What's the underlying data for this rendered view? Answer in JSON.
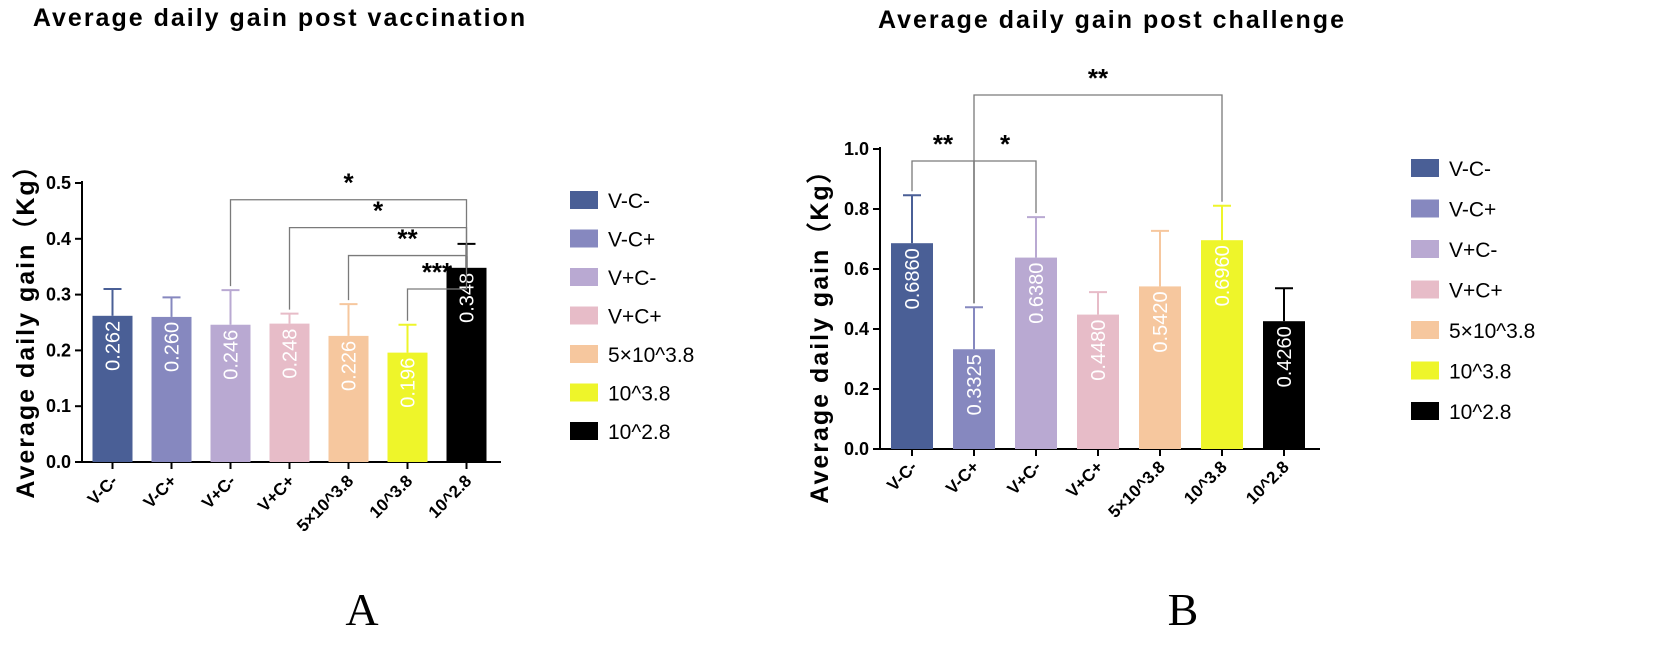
{
  "colors": {
    "V-C-": "#4a5f96",
    "V-C+": "#8688bf",
    "V+C-": "#b9a9d2",
    "V+C+": "#e7bcc8",
    "5×10^3.8": "#f6c79e",
    "10^3.8": "#eef52a",
    "10^2.8": "#000000"
  },
  "chart_data": [
    {
      "panel": "A",
      "type": "bar",
      "title": "Average daily gain post vaccination",
      "ylabel": "Average daily gain（Kg）",
      "xlabel": "",
      "ylim": [
        0,
        0.5
      ],
      "yticks": [
        "0.0",
        "0.1",
        "0.2",
        "0.3",
        "0.4",
        "0.5"
      ],
      "categories": [
        "V-C-",
        "V-C+",
        "V+C-",
        "V+C+",
        "5×10^3.8",
        "10^3.8",
        "10^2.8"
      ],
      "values": [
        0.262,
        0.26,
        0.246,
        0.248,
        0.226,
        0.196,
        0.348
      ],
      "value_labels": [
        "0.262",
        "0.260",
        "0.246",
        "0.248",
        "0.226",
        "0.196",
        "0.348"
      ],
      "errors": [
        0.048,
        0.035,
        0.062,
        0.018,
        0.057,
        0.05,
        0.043
      ],
      "legend": [
        "V-C-",
        "V-C+",
        "V+C-",
        "V+C+",
        "5×10^3.8",
        "10^3.8",
        "10^2.8"
      ],
      "legend_position": "right",
      "significance": [
        {
          "from": 2,
          "to": 6,
          "y": 0.47,
          "label": "*"
        },
        {
          "from": 3,
          "to": 6,
          "y": 0.42,
          "label": "*"
        },
        {
          "from": 4,
          "to": 6,
          "y": 0.37,
          "label": "**"
        },
        {
          "from": 5,
          "to": 6,
          "y": 0.31,
          "label": "***"
        }
      ]
    },
    {
      "panel": "B",
      "type": "bar",
      "title": "Average daily gain post challenge",
      "ylabel": "Average daily gain（Kg）",
      "xlabel": "",
      "ylim": [
        0,
        1.0
      ],
      "yticks": [
        "0.0",
        "0.2",
        "0.4",
        "0.6",
        "0.8",
        "1.0"
      ],
      "categories": [
        "V-C-",
        "V-C+",
        "V+C-",
        "V+C+",
        "5×10^3.8",
        "10^3.8",
        "10^2.8"
      ],
      "values": [
        0.686,
        0.3325,
        0.638,
        0.448,
        0.542,
        0.696,
        0.426
      ],
      "value_labels": [
        "0.6860",
        "0.3325",
        "0.6380",
        "0.4480",
        "0.5420",
        "0.6960",
        "0.4260"
      ],
      "errors": [
        0.16,
        0.14,
        0.135,
        0.075,
        0.185,
        0.115,
        0.11
      ],
      "legend": [
        "V-C-",
        "V-C+",
        "V+C-",
        "V+C+",
        "5×10^3.8",
        "10^3.8",
        "10^2.8"
      ],
      "legend_position": "right",
      "significance": [
        {
          "from": 1,
          "to": 5,
          "y": 1.18,
          "label": "**"
        },
        {
          "from": 0,
          "to": 1,
          "y": 0.96,
          "label": "**"
        },
        {
          "from": 1,
          "to": 2,
          "y": 0.96,
          "label": "*"
        }
      ]
    }
  ]
}
